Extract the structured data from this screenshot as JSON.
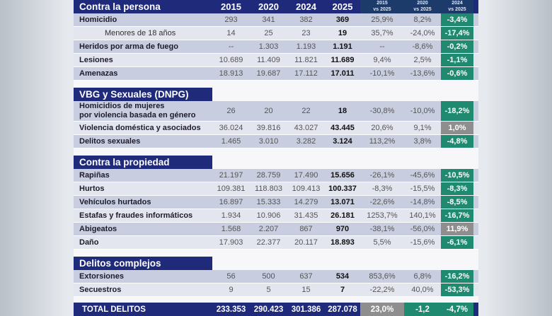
{
  "header": {
    "title": "Contra la persona",
    "years": [
      "2015",
      "2020",
      "2024",
      "2025"
    ],
    "cmp": [
      [
        "2015",
        "vs 2025"
      ],
      [
        "2020",
        "vs 2025"
      ],
      [
        "2024",
        "vs 2025"
      ]
    ]
  },
  "sections": [
    {
      "title": null,
      "rows": [
        {
          "label": "Homicidio",
          "v": [
            "293",
            "341",
            "382",
            "369"
          ],
          "p": [
            "25,9%",
            "8,2%",
            "-3,4%"
          ],
          "gray": false
        },
        {
          "label": "Menores de 18 años",
          "sub": true,
          "v": [
            "14",
            "25",
            "23",
            "19"
          ],
          "p": [
            "35,7%",
            "-24,0%",
            "-17,4%"
          ],
          "gray": false
        },
        {
          "label": "Heridos por arma de fuego",
          "v": [
            "--",
            "1.303",
            "1.193",
            "1.191"
          ],
          "p": [
            "--",
            "-8,6%",
            "-0,2%"
          ],
          "gray": false
        },
        {
          "label": "Lesiones",
          "v": [
            "10.689",
            "11.409",
            "11.821",
            "11.689"
          ],
          "p": [
            "9,4%",
            "2,5%",
            "-1,1%"
          ],
          "gray": false
        },
        {
          "label": "Amenazas",
          "v": [
            "18.913",
            "19.687",
            "17.112",
            "17.011"
          ],
          "p": [
            "-10,1%",
            "-13,6%",
            "-0,6%"
          ],
          "gray": false
        }
      ]
    },
    {
      "title": "VBG y Sexuales (DNPG)",
      "rows": [
        {
          "label": "Homicidios de mujeres\npor violencia basada en género",
          "tall": true,
          "v": [
            "26",
            "20",
            "22",
            "18"
          ],
          "p": [
            "-30,8%",
            "-10,0%",
            "-18,2%"
          ],
          "gray": false
        },
        {
          "label": "Violencia doméstica y asociados",
          "v": [
            "36.024",
            "39.816",
            "43.027",
            "43.445"
          ],
          "p": [
            "20,6%",
            "9,1%",
            "1,0%"
          ],
          "gray": true
        },
        {
          "label": "Delitos sexuales",
          "v": [
            "1.465",
            "3.010",
            "3.282",
            "3.124"
          ],
          "p": [
            "113,2%",
            "3,8%",
            "-4,8%"
          ],
          "gray": false
        }
      ]
    },
    {
      "title": "Contra la propiedad",
      "rows": [
        {
          "label": "Rapiñas",
          "v": [
            "21.197",
            "28.759",
            "17.490",
            "15.656"
          ],
          "p": [
            "-26,1%",
            "-45,6%",
            "-10,5%"
          ],
          "gray": false
        },
        {
          "label": "Hurtos",
          "v": [
            "109.381",
            "118.803",
            "109.413",
            "100.337"
          ],
          "p": [
            "-8,3%",
            "-15,5%",
            "-8,3%"
          ],
          "gray": false
        },
        {
          "label": "Vehículos hurtados",
          "v": [
            "16.897",
            "15.333",
            "14.279",
            "13.071"
          ],
          "p": [
            "-22,6%",
            "-14,8%",
            "-8,5%"
          ],
          "gray": false
        },
        {
          "label": "Estafas y fraudes informáticos",
          "v": [
            "1.934",
            "10.906",
            "31.435",
            "26.181"
          ],
          "p": [
            "1253,7%",
            "140,1%",
            "-16,7%"
          ],
          "gray": false
        },
        {
          "label": "Abigeatos",
          "v": [
            "1.568",
            "2.207",
            "867",
            "970"
          ],
          "p": [
            "-38,1%",
            "-56,0%",
            "11,9%"
          ],
          "gray": true
        },
        {
          "label": "Daño",
          "v": [
            "17.903",
            "22.377",
            "20.117",
            "18.893"
          ],
          "p": [
            "5,5%",
            "-15,6%",
            "-6,1%"
          ],
          "gray": false
        }
      ]
    },
    {
      "title": "Delitos complejos",
      "rows": [
        {
          "label": "Extorsiones",
          "v": [
            "56",
            "500",
            "637",
            "534"
          ],
          "p": [
            "853,6%",
            "6,8%",
            "-16,2%"
          ],
          "gray": false
        },
        {
          "label": "Secuestros",
          "v": [
            "9",
            "5",
            "15",
            "7"
          ],
          "p": [
            "-22,2%",
            "40,0%",
            "-53,3%"
          ],
          "gray": false
        }
      ]
    }
  ],
  "total": {
    "label": "TOTAL DELITOS",
    "v": [
      "233.353",
      "290.423",
      "301.386",
      "287.078"
    ],
    "p": [
      "23,0%",
      "-1,2",
      "-4,7%"
    ]
  }
}
